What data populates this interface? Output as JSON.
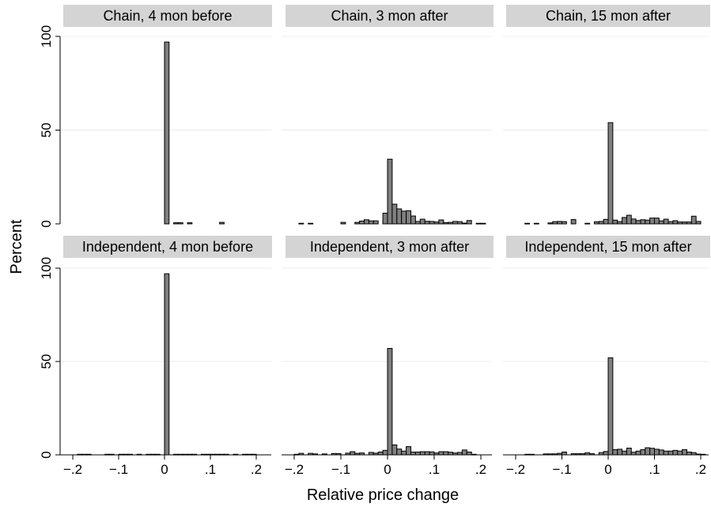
{
  "figure": {
    "ylabel": "Percent",
    "xlabel": "Relative price change"
  },
  "chart_data": [
    {
      "type": "bar",
      "title": "Chain, 4 mon before",
      "xlim": [
        -0.2,
        0.2
      ],
      "ylim": [
        0,
        100
      ],
      "bin_width": 0.01,
      "x": [
        0.0,
        0.02,
        0.03,
        0.05,
        0.12
      ],
      "values": [
        97,
        0.6,
        0.6,
        0.6,
        0.8
      ]
    },
    {
      "type": "bar",
      "title": "Chain, 3 mon after",
      "xlim": [
        -0.2,
        0.2
      ],
      "ylim": [
        0,
        100
      ],
      "bin_width": 0.01,
      "x": [
        -0.19,
        -0.17,
        -0.1,
        -0.07,
        -0.06,
        -0.05,
        -0.04,
        -0.03,
        -0.01,
        -0.01,
        0.0,
        0.01,
        0.02,
        0.03,
        0.04,
        0.05,
        0.06,
        0.07,
        0.08,
        0.09,
        0.1,
        0.11,
        0.12,
        0.13,
        0.14,
        0.15,
        0.16,
        0.17,
        0.19,
        0.2
      ],
      "values": [
        0.3,
        0.3,
        0.8,
        0.8,
        1.5,
        2.2,
        1.6,
        1.6,
        1.8,
        5.7,
        34.5,
        10.5,
        8.0,
        6.8,
        7.0,
        4.2,
        1.3,
        2.5,
        1.4,
        1.3,
        1.0,
        2.1,
        0.7,
        0.8,
        1.3,
        1.2,
        0.4,
        1.8,
        0.3,
        0.3
      ]
    },
    {
      "type": "bar",
      "title": "Chain, 15 mon after",
      "xlim": [
        -0.2,
        0.2
      ],
      "ylim": [
        0,
        100
      ],
      "bin_width": 0.01,
      "x": [
        -0.18,
        -0.16,
        -0.13,
        -0.12,
        -0.11,
        -0.1,
        -0.08,
        -0.05,
        -0.03,
        -0.02,
        -0.01,
        0.0,
        0.01,
        0.02,
        0.03,
        0.04,
        0.05,
        0.06,
        0.07,
        0.08,
        0.09,
        0.1,
        0.11,
        0.12,
        0.13,
        0.14,
        0.15,
        0.16,
        0.17,
        0.18,
        0.19
      ],
      "values": [
        0.3,
        0.3,
        0.5,
        1.2,
        1.3,
        1.2,
        2.3,
        0.3,
        1.1,
        1.3,
        2.4,
        54,
        2.0,
        1.2,
        3.4,
        4.6,
        2.6,
        1.8,
        2.2,
        2.0,
        3.1,
        3.1,
        1.6,
        2.5,
        1.2,
        1.7,
        1.0,
        1.0,
        1.0,
        4.1,
        1.3
      ]
    },
    {
      "type": "bar",
      "title": "Independent, 4 mon before",
      "xlim": [
        -0.2,
        0.2
      ],
      "ylim": [
        0,
        100
      ],
      "bin_width": 0.01,
      "x": [
        -0.19,
        -0.18,
        -0.17,
        -0.13,
        -0.12,
        -0.1,
        -0.09,
        -0.08,
        -0.06,
        -0.04,
        -0.03,
        -0.02,
        0.0,
        0.02,
        0.03,
        0.04,
        0.05,
        0.06,
        0.08,
        0.09,
        0.1,
        0.11,
        0.12,
        0.13,
        0.15,
        0.17,
        0.18,
        0.19
      ],
      "values": [
        0.3,
        0.3,
        0.3,
        0.3,
        0.3,
        0.3,
        0.3,
        0.3,
        0.3,
        0.3,
        0.3,
        0.3,
        97,
        0.3,
        0.3,
        0.3,
        0.3,
        0.3,
        0.3,
        0.3,
        0.3,
        0.3,
        0.3,
        0.3,
        0.3,
        0.3,
        0.3,
        0.3
      ]
    },
    {
      "type": "bar",
      "title": "Independent, 3 mon after",
      "xlim": [
        -0.2,
        0.2
      ],
      "ylim": [
        0,
        100
      ],
      "bin_width": 0.01,
      "x": [
        -0.2,
        -0.19,
        -0.17,
        -0.16,
        -0.14,
        -0.12,
        -0.11,
        -0.09,
        -0.08,
        -0.07,
        -0.06,
        -0.04,
        -0.03,
        -0.02,
        -0.01,
        0.0,
        0.01,
        0.02,
        0.03,
        0.04,
        0.05,
        0.06,
        0.07,
        0.08,
        0.09,
        0.1,
        0.11,
        0.12,
        0.13,
        0.14,
        0.15,
        0.16,
        0.17,
        0.18
      ],
      "values": [
        0.3,
        0.8,
        0.8,
        0.5,
        0.5,
        0.7,
        0.7,
        0.9,
        1.7,
        0.8,
        1.0,
        1.3,
        0.9,
        1.5,
        2.4,
        57,
        5.3,
        3.1,
        2.0,
        4.4,
        1.5,
        1.5,
        1.7,
        1.7,
        1.6,
        1.0,
        1.7,
        1.7,
        1.4,
        1.0,
        1.3,
        2.6,
        1.5,
        0.3
      ]
    },
    {
      "type": "bar",
      "title": "Independent, 15 mon after",
      "xlim": [
        -0.2,
        0.2
      ],
      "ylim": [
        0,
        100
      ],
      "bin_width": 0.01,
      "x": [
        -0.18,
        -0.17,
        -0.14,
        -0.13,
        -0.12,
        -0.11,
        -0.1,
        -0.08,
        -0.07,
        -0.06,
        -0.05,
        -0.04,
        -0.02,
        -0.01,
        0.0,
        0.01,
        0.02,
        0.03,
        0.04,
        0.05,
        0.06,
        0.07,
        0.08,
        0.09,
        0.1,
        0.11,
        0.12,
        0.13,
        0.14,
        0.15,
        0.16,
        0.17,
        0.18,
        0.19,
        0.2
      ],
      "values": [
        0.3,
        0.3,
        0.5,
        0.5,
        0.5,
        0.8,
        1.5,
        0.6,
        0.6,
        0.6,
        1.1,
        0.6,
        1.2,
        1.8,
        52,
        2.8,
        3.0,
        2.0,
        3.6,
        1.4,
        2.0,
        2.8,
        3.8,
        3.5,
        3.0,
        2.6,
        2.0,
        2.0,
        2.4,
        2.0,
        2.8,
        1.5,
        1.2,
        0.4,
        0.3
      ]
    }
  ],
  "axes": {
    "x_ticks": [
      -0.2,
      -0.1,
      0,
      0.1,
      0.2
    ],
    "x_tick_labels": [
      "−.2",
      "−.1",
      "0",
      ".1",
      ".2"
    ],
    "y_ticks": [
      0,
      50,
      100
    ],
    "y_tick_labels": [
      "0",
      "50",
      "100"
    ]
  }
}
